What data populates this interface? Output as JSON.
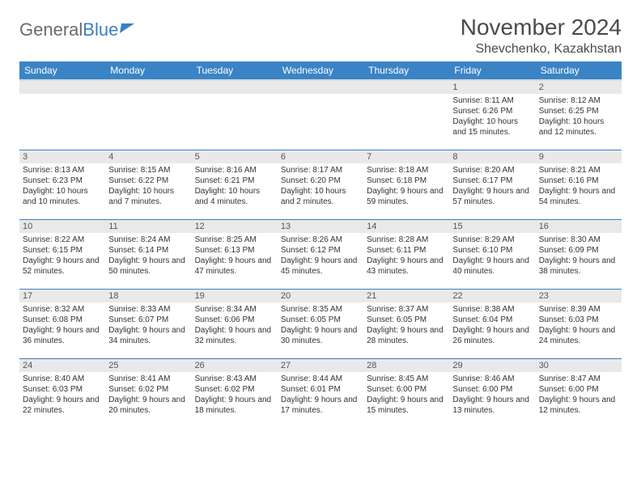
{
  "brand": {
    "part1": "General",
    "part2": "Blue"
  },
  "header": {
    "month_title": "November 2024",
    "location": "Shevchenko, Kazakhstan"
  },
  "style": {
    "header_bg": "#3a84c6",
    "header_text": "#ffffff",
    "daynum_bg": "#e9e9e9",
    "row_border": "#3a7fc4",
    "brand_gray": "#6b6b6b",
    "brand_blue": "#3a7fc4",
    "title_color": "#4a4a4a",
    "body_text": "#333333",
    "month_title_fontsize": 28,
    "location_fontsize": 16,
    "dayheader_fontsize": 12,
    "daynum_fontsize": 11,
    "cell_fontsize": 10
  },
  "day_headers": [
    "Sunday",
    "Monday",
    "Tuesday",
    "Wednesday",
    "Thursday",
    "Friday",
    "Saturday"
  ],
  "weeks": [
    [
      {
        "n": "",
        "sr": "",
        "ss": "",
        "dl": ""
      },
      {
        "n": "",
        "sr": "",
        "ss": "",
        "dl": ""
      },
      {
        "n": "",
        "sr": "",
        "ss": "",
        "dl": ""
      },
      {
        "n": "",
        "sr": "",
        "ss": "",
        "dl": ""
      },
      {
        "n": "",
        "sr": "",
        "ss": "",
        "dl": ""
      },
      {
        "n": "1",
        "sr": "Sunrise: 8:11 AM",
        "ss": "Sunset: 6:26 PM",
        "dl": "Daylight: 10 hours and 15 minutes."
      },
      {
        "n": "2",
        "sr": "Sunrise: 8:12 AM",
        "ss": "Sunset: 6:25 PM",
        "dl": "Daylight: 10 hours and 12 minutes."
      }
    ],
    [
      {
        "n": "3",
        "sr": "Sunrise: 8:13 AM",
        "ss": "Sunset: 6:23 PM",
        "dl": "Daylight: 10 hours and 10 minutes."
      },
      {
        "n": "4",
        "sr": "Sunrise: 8:15 AM",
        "ss": "Sunset: 6:22 PM",
        "dl": "Daylight: 10 hours and 7 minutes."
      },
      {
        "n": "5",
        "sr": "Sunrise: 8:16 AM",
        "ss": "Sunset: 6:21 PM",
        "dl": "Daylight: 10 hours and 4 minutes."
      },
      {
        "n": "6",
        "sr": "Sunrise: 8:17 AM",
        "ss": "Sunset: 6:20 PM",
        "dl": "Daylight: 10 hours and 2 minutes."
      },
      {
        "n": "7",
        "sr": "Sunrise: 8:18 AM",
        "ss": "Sunset: 6:18 PM",
        "dl": "Daylight: 9 hours and 59 minutes."
      },
      {
        "n": "8",
        "sr": "Sunrise: 8:20 AM",
        "ss": "Sunset: 6:17 PM",
        "dl": "Daylight: 9 hours and 57 minutes."
      },
      {
        "n": "9",
        "sr": "Sunrise: 8:21 AM",
        "ss": "Sunset: 6:16 PM",
        "dl": "Daylight: 9 hours and 54 minutes."
      }
    ],
    [
      {
        "n": "10",
        "sr": "Sunrise: 8:22 AM",
        "ss": "Sunset: 6:15 PM",
        "dl": "Daylight: 9 hours and 52 minutes."
      },
      {
        "n": "11",
        "sr": "Sunrise: 8:24 AM",
        "ss": "Sunset: 6:14 PM",
        "dl": "Daylight: 9 hours and 50 minutes."
      },
      {
        "n": "12",
        "sr": "Sunrise: 8:25 AM",
        "ss": "Sunset: 6:13 PM",
        "dl": "Daylight: 9 hours and 47 minutes."
      },
      {
        "n": "13",
        "sr": "Sunrise: 8:26 AM",
        "ss": "Sunset: 6:12 PM",
        "dl": "Daylight: 9 hours and 45 minutes."
      },
      {
        "n": "14",
        "sr": "Sunrise: 8:28 AM",
        "ss": "Sunset: 6:11 PM",
        "dl": "Daylight: 9 hours and 43 minutes."
      },
      {
        "n": "15",
        "sr": "Sunrise: 8:29 AM",
        "ss": "Sunset: 6:10 PM",
        "dl": "Daylight: 9 hours and 40 minutes."
      },
      {
        "n": "16",
        "sr": "Sunrise: 8:30 AM",
        "ss": "Sunset: 6:09 PM",
        "dl": "Daylight: 9 hours and 38 minutes."
      }
    ],
    [
      {
        "n": "17",
        "sr": "Sunrise: 8:32 AM",
        "ss": "Sunset: 6:08 PM",
        "dl": "Daylight: 9 hours and 36 minutes."
      },
      {
        "n": "18",
        "sr": "Sunrise: 8:33 AM",
        "ss": "Sunset: 6:07 PM",
        "dl": "Daylight: 9 hours and 34 minutes."
      },
      {
        "n": "19",
        "sr": "Sunrise: 8:34 AM",
        "ss": "Sunset: 6:06 PM",
        "dl": "Daylight: 9 hours and 32 minutes."
      },
      {
        "n": "20",
        "sr": "Sunrise: 8:35 AM",
        "ss": "Sunset: 6:05 PM",
        "dl": "Daylight: 9 hours and 30 minutes."
      },
      {
        "n": "21",
        "sr": "Sunrise: 8:37 AM",
        "ss": "Sunset: 6:05 PM",
        "dl": "Daylight: 9 hours and 28 minutes."
      },
      {
        "n": "22",
        "sr": "Sunrise: 8:38 AM",
        "ss": "Sunset: 6:04 PM",
        "dl": "Daylight: 9 hours and 26 minutes."
      },
      {
        "n": "23",
        "sr": "Sunrise: 8:39 AM",
        "ss": "Sunset: 6:03 PM",
        "dl": "Daylight: 9 hours and 24 minutes."
      }
    ],
    [
      {
        "n": "24",
        "sr": "Sunrise: 8:40 AM",
        "ss": "Sunset: 6:03 PM",
        "dl": "Daylight: 9 hours and 22 minutes."
      },
      {
        "n": "25",
        "sr": "Sunrise: 8:41 AM",
        "ss": "Sunset: 6:02 PM",
        "dl": "Daylight: 9 hours and 20 minutes."
      },
      {
        "n": "26",
        "sr": "Sunrise: 8:43 AM",
        "ss": "Sunset: 6:02 PM",
        "dl": "Daylight: 9 hours and 18 minutes."
      },
      {
        "n": "27",
        "sr": "Sunrise: 8:44 AM",
        "ss": "Sunset: 6:01 PM",
        "dl": "Daylight: 9 hours and 17 minutes."
      },
      {
        "n": "28",
        "sr": "Sunrise: 8:45 AM",
        "ss": "Sunset: 6:00 PM",
        "dl": "Daylight: 9 hours and 15 minutes."
      },
      {
        "n": "29",
        "sr": "Sunrise: 8:46 AM",
        "ss": "Sunset: 6:00 PM",
        "dl": "Daylight: 9 hours and 13 minutes."
      },
      {
        "n": "30",
        "sr": "Sunrise: 8:47 AM",
        "ss": "Sunset: 6:00 PM",
        "dl": "Daylight: 9 hours and 12 minutes."
      }
    ]
  ]
}
